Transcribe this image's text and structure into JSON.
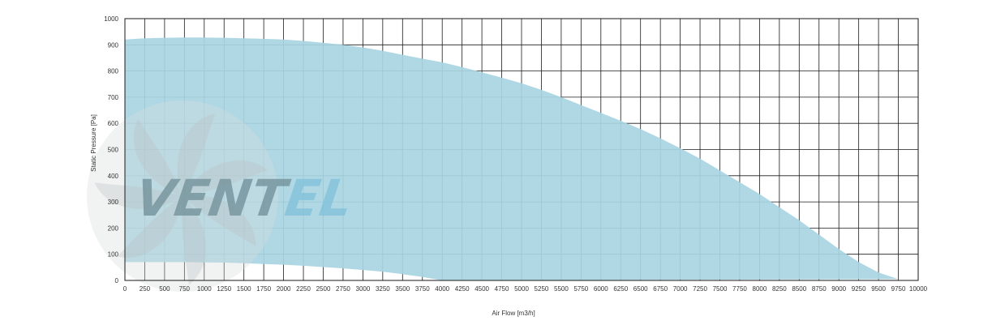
{
  "chart_data": {
    "type": "area",
    "title": "",
    "xlabel": "Air Flow [m3/h]",
    "ylabel": "Static Pressure [Pa]",
    "xlim": [
      0,
      10000
    ],
    "ylim": [
      0,
      1000
    ],
    "x_ticks": [
      0,
      250,
      500,
      750,
      1000,
      1250,
      1500,
      1750,
      2000,
      2250,
      2500,
      2750,
      3000,
      3250,
      3500,
      3750,
      4000,
      4250,
      4500,
      4750,
      5000,
      5250,
      5500,
      5750,
      6000,
      6250,
      6500,
      6750,
      7000,
      7250,
      7500,
      7750,
      8000,
      8250,
      8500,
      8750,
      9000,
      9250,
      9500,
      9750,
      10000
    ],
    "y_ticks": [
      0,
      100,
      200,
      300,
      400,
      500,
      600,
      700,
      800,
      900,
      1000
    ],
    "grid": true,
    "fill_color": "#a8d5e2",
    "series": [
      {
        "upper": {
          "x": [
            0,
            250,
            500,
            750,
            1000,
            1250,
            1500,
            1750,
            2000,
            2250,
            2500,
            2750,
            3000,
            3250,
            3500,
            3750,
            4000,
            4250,
            4500,
            4750,
            5000,
            5250,
            5500,
            5750,
            6000,
            6250,
            6500,
            6750,
            7000,
            7250,
            7500,
            7750,
            8000,
            8250,
            8500,
            8750,
            9000,
            9250,
            9500,
            9750
          ],
          "y": [
            920,
            925,
            927,
            928,
            928,
            927,
            925,
            923,
            920,
            915,
            908,
            900,
            890,
            877,
            862,
            847,
            833,
            815,
            795,
            775,
            753,
            728,
            700,
            670,
            640,
            610,
            578,
            543,
            505,
            465,
            420,
            375,
            330,
            280,
            230,
            175,
            120,
            70,
            30,
            5
          ]
        },
        "lower": {
          "x": [
            0,
            250,
            500,
            750,
            1000,
            1250,
            1500,
            1750,
            2000,
            2250,
            2500,
            2750,
            3000,
            3250,
            3500,
            3750,
            4000
          ],
          "y": [
            70,
            70,
            70,
            70,
            69,
            68,
            66,
            63,
            60,
            56,
            51,
            46,
            40,
            33,
            24,
            13,
            0
          ]
        }
      }
    ],
    "watermark": {
      "text_dark": "VENT",
      "text_light": "EL",
      "color_dark": "#6f8c95",
      "color_light": "#7fc0da"
    }
  }
}
